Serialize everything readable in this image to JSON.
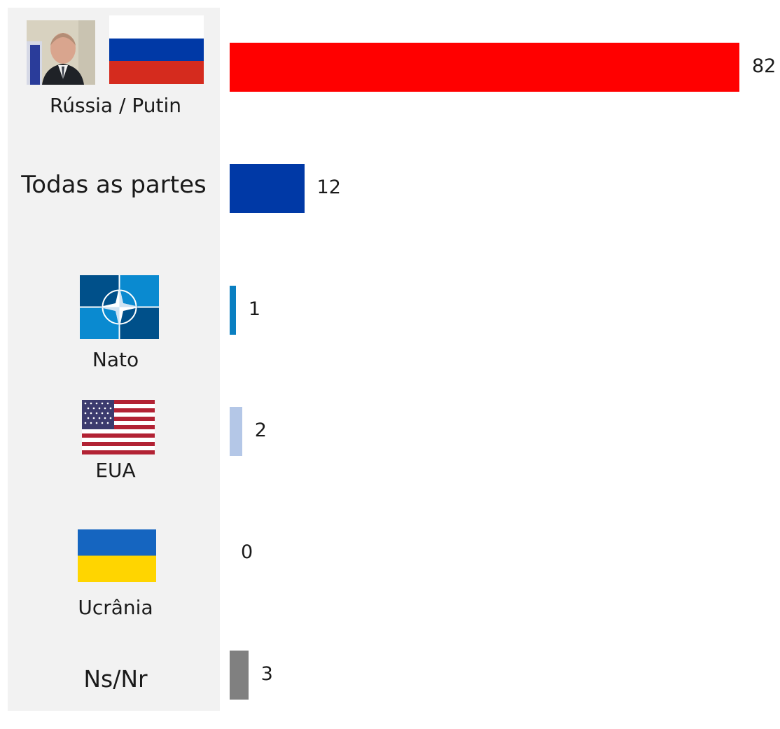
{
  "chart_data": {
    "type": "bar",
    "orientation": "horizontal",
    "categories": [
      "Rússia / Putin",
      "Todas as partes",
      "Nato",
      "EUA",
      "Ucrânia",
      "Ns/Nr"
    ],
    "values": [
      82,
      12,
      1,
      2,
      0,
      3
    ],
    "colors": [
      "#ff0000",
      "#0039a6",
      "#0a7fc1",
      "#b4c7e7",
      "#ffffff",
      "#808080"
    ],
    "value_labels": [
      "82",
      "12",
      "1",
      "2",
      "0",
      "3"
    ],
    "title": "",
    "xlabel": "",
    "ylabel": "",
    "xlim": [
      0,
      82
    ],
    "grid": false,
    "legend": "none"
  },
  "icons": {
    "russia": [
      "putin-portrait-icon",
      "russia-flag-icon"
    ],
    "nato": "nato-logo-icon",
    "usa": "usa-flag-icon",
    "ukraine": "ukraine-flag-icon"
  }
}
